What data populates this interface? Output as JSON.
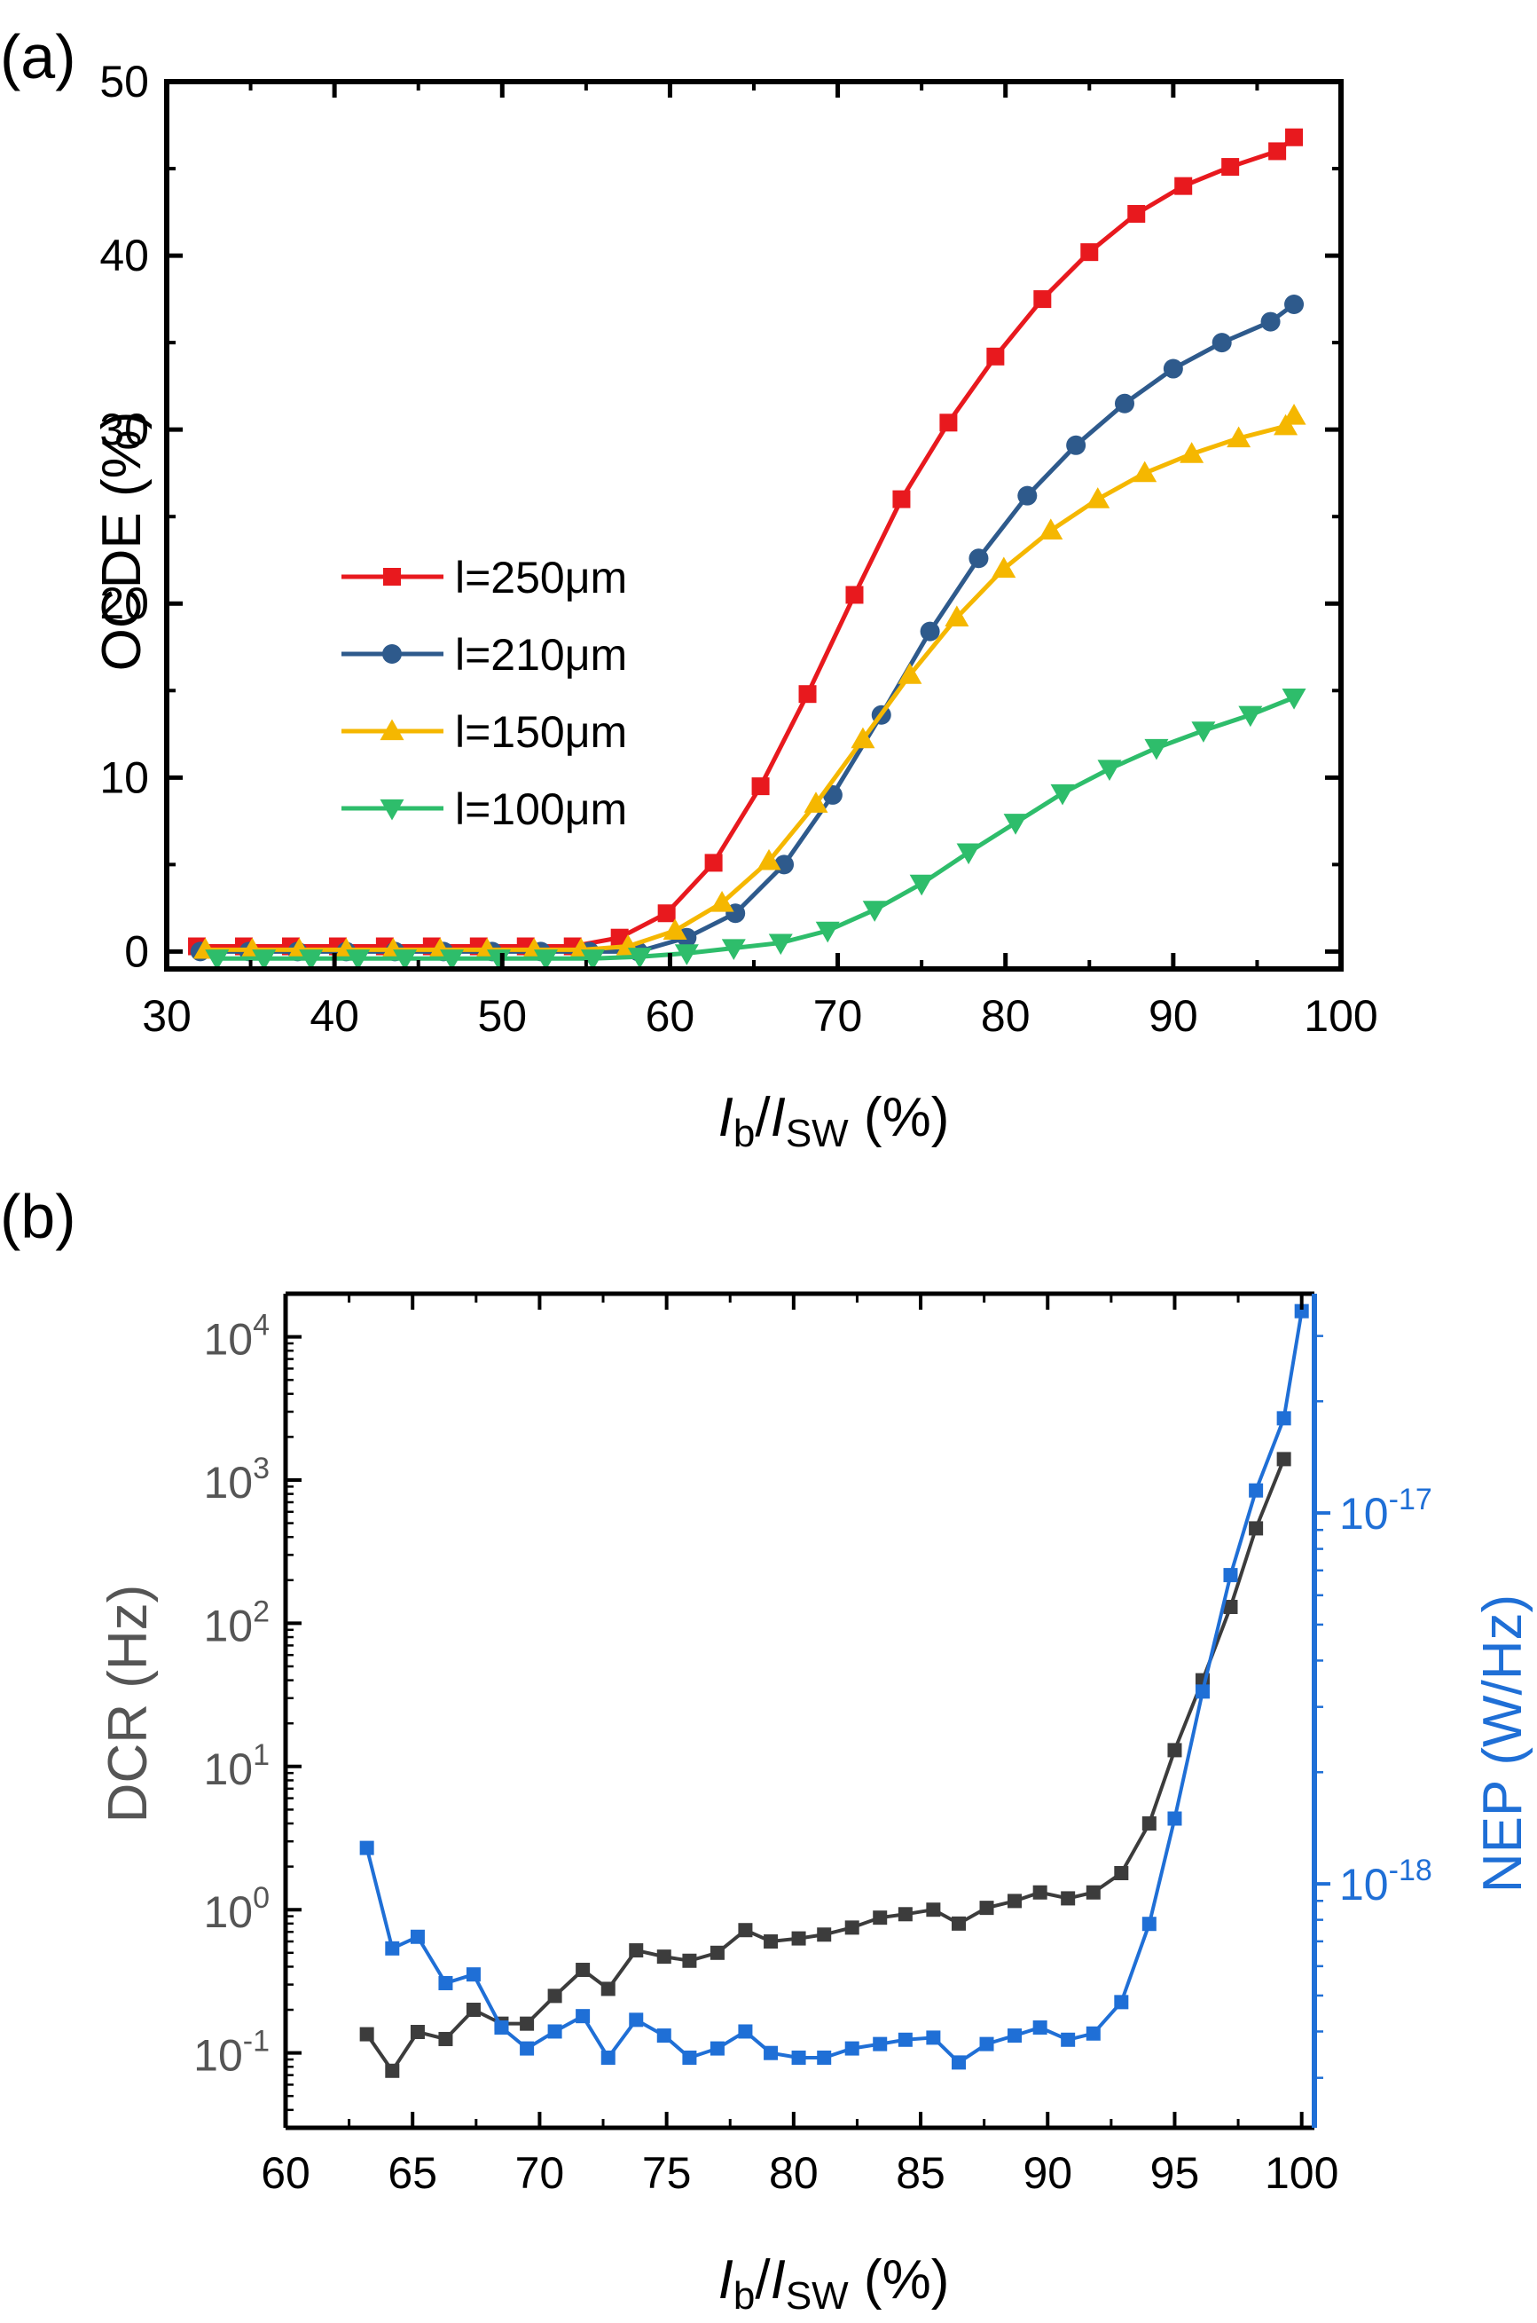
{
  "chart_data": [
    {
      "type": "line",
      "panel_label": "(a)",
      "xlabel": {
        "main": "I",
        "sub1": "b",
        "slash": "/",
        "main2": "I",
        "sub2": "SW",
        "unit": " (%)"
      },
      "ylabel": "OCDE (%)",
      "xlim": [
        30,
        100
      ],
      "ylim": [
        -1,
        50
      ],
      "xticks": [
        30,
        40,
        50,
        60,
        70,
        80,
        90,
        100
      ],
      "yticks": [
        0,
        10,
        20,
        30,
        40,
        50
      ],
      "legend_position": "center-left",
      "series": [
        {
          "name": "l=250μm",
          "color": "#e8191e",
          "marker": "square",
          "x": [
            31.8,
            34.6,
            37.4,
            40.2,
            43.0,
            45.8,
            48.6,
            51.4,
            54.2,
            57.0,
            59.8,
            62.6,
            65.4,
            68.2,
            71.0,
            73.8,
            76.6,
            79.4,
            82.2,
            85.0,
            87.8,
            90.6,
            93.4,
            96.2,
            97.2
          ],
          "y": [
            0.3,
            0.3,
            0.3,
            0.3,
            0.3,
            0.3,
            0.3,
            0.3,
            0.3,
            0.8,
            2.2,
            5.1,
            9.5,
            14.8,
            20.5,
            26.0,
            30.4,
            34.2,
            37.5,
            40.2,
            42.4,
            44.0,
            45.1,
            46.0,
            46.8
          ]
        },
        {
          "name": "l=210μm",
          "color": "#2e5a8c",
          "marker": "circle",
          "x": [
            32.0,
            34.9,
            37.8,
            40.7,
            43.6,
            46.5,
            49.4,
            52.3,
            55.2,
            58.1,
            61.0,
            63.9,
            66.8,
            69.7,
            72.6,
            75.5,
            78.4,
            81.3,
            84.2,
            87.1,
            90.0,
            92.9,
            95.8,
            97.2
          ],
          "y": [
            0,
            0,
            0,
            0,
            0,
            0,
            0,
            0,
            0,
            0,
            0.8,
            2.2,
            5.0,
            9.0,
            13.6,
            18.4,
            22.6,
            26.2,
            29.1,
            31.5,
            33.5,
            35.0,
            36.2,
            37.2
          ]
        },
        {
          "name": "l=150μm",
          "color": "#f5b700",
          "marker": "triangle-up",
          "x": [
            32.3,
            35.1,
            37.9,
            40.7,
            43.5,
            46.3,
            49.1,
            51.9,
            54.7,
            57.5,
            60.3,
            63.1,
            65.9,
            68.7,
            71.5,
            74.3,
            77.1,
            79.9,
            82.7,
            85.5,
            88.3,
            91.1,
            93.9,
            96.7,
            97.2
          ],
          "y": [
            0.1,
            0.1,
            0.1,
            0.1,
            0.1,
            0.1,
            0.1,
            0.1,
            0.1,
            0.3,
            1.2,
            2.8,
            5.2,
            8.5,
            12.2,
            15.9,
            19.2,
            22.0,
            24.2,
            26.0,
            27.5,
            28.6,
            29.5,
            30.2,
            30.8
          ]
        },
        {
          "name": "l=100μm",
          "color": "#2ebd6b",
          "marker": "triangle-down",
          "x": [
            33.0,
            35.8,
            38.6,
            41.4,
            44.2,
            47.0,
            49.8,
            52.6,
            55.4,
            58.2,
            61.0,
            63.8,
            66.6,
            69.4,
            72.2,
            75.0,
            77.8,
            80.6,
            83.4,
            86.2,
            89.0,
            91.8,
            94.6,
            97.2
          ],
          "y": [
            -0.4,
            -0.4,
            -0.4,
            -0.4,
            -0.4,
            -0.4,
            -0.4,
            -0.4,
            -0.4,
            -0.3,
            -0.1,
            0.2,
            0.5,
            1.2,
            2.4,
            3.9,
            5.7,
            7.4,
            9.1,
            10.5,
            11.7,
            12.7,
            13.6,
            14.6
          ]
        }
      ]
    },
    {
      "type": "line",
      "panel_label": "(b)",
      "xlabel": {
        "main": "I",
        "sub1": "b",
        "slash": "/",
        "main2": "I",
        "sub2": "SW",
        "unit": " (%)"
      },
      "ylabel_left": "DCR (Hz)",
      "ylabel_right": "NEP (W/Hz)",
      "xlim": [
        60,
        100.5
      ],
      "xticks": [
        60,
        65,
        70,
        75,
        80,
        85,
        90,
        95,
        100
      ],
      "y_left_scale": "log",
      "y_left_lim": [
        0.03,
        20000
      ],
      "y_left_ticks": [
        {
          "base": "10",
          "exp": "-1",
          "value": 0.1
        },
        {
          "base": "10",
          "exp": "0",
          "value": 1
        },
        {
          "base": "10",
          "exp": "1",
          "value": 10
        },
        {
          "base": "10",
          "exp": "2",
          "value": 100
        },
        {
          "base": "10",
          "exp": "3",
          "value": 1000
        },
        {
          "base": "10",
          "exp": "4",
          "value": 10000
        }
      ],
      "y_right_scale": "log",
      "y_right_lim": [
        2.2e-19,
        3.9e-17
      ],
      "y_right_ticks": [
        {
          "base": "10",
          "exp": "-18",
          "value": 1e-18
        },
        {
          "base": "10",
          "exp": "-17",
          "value": 1e-17
        }
      ],
      "y_right_color": "#1f6fd6",
      "series": [
        {
          "name": "DCR",
          "axis": "left",
          "color": "#3c3c3c",
          "marker": "square",
          "x": [
            63.2,
            64.2,
            65.2,
            66.3,
            67.4,
            68.5,
            69.5,
            70.6,
            71.7,
            72.7,
            73.8,
            74.9,
            75.9,
            77.0,
            78.1,
            79.1,
            80.2,
            81.2,
            82.3,
            83.4,
            84.4,
            85.5,
            86.5,
            87.6,
            88.7,
            89.7,
            90.8,
            91.8,
            92.9,
            94.0,
            95.0,
            96.1,
            97.2,
            98.2,
            99.3
          ],
          "y": [
            0.135,
            0.075,
            0.14,
            0.125,
            0.2,
            0.16,
            0.16,
            0.25,
            0.38,
            0.28,
            0.52,
            0.47,
            0.44,
            0.5,
            0.72,
            0.6,
            0.63,
            0.67,
            0.75,
            0.88,
            0.93,
            1.0,
            0.8,
            1.03,
            1.15,
            1.32,
            1.2,
            1.32,
            1.8,
            4.0,
            13,
            40,
            130,
            460,
            1400
          ]
        },
        {
          "name": "NEP",
          "axis": "right",
          "color": "#1f6fd6",
          "marker": "square",
          "x": [
            63.2,
            64.2,
            65.2,
            66.3,
            67.4,
            68.5,
            69.5,
            70.6,
            71.7,
            72.7,
            73.8,
            74.9,
            75.9,
            77.0,
            78.1,
            79.1,
            80.2,
            81.2,
            82.3,
            83.4,
            84.4,
            85.5,
            86.5,
            87.6,
            88.7,
            89.7,
            90.8,
            91.8,
            92.9,
            94.0,
            95.0,
            96.1,
            97.2,
            98.2,
            99.3,
            100.0
          ],
          "y": [
            1.25e-18,
            6.7e-19,
            7.2e-19,
            5.4e-19,
            5.7e-19,
            4.1e-19,
            3.6e-19,
            4e-19,
            4.4e-19,
            3.4e-19,
            4.3e-19,
            3.9e-19,
            3.4e-19,
            3.6e-19,
            4e-19,
            3.5e-19,
            3.4e-19,
            3.4e-19,
            3.6e-19,
            3.7e-19,
            3.8e-19,
            3.85e-19,
            3.3e-19,
            3.7e-19,
            3.9e-19,
            4.1e-19,
            3.8e-19,
            3.95e-19,
            4.8e-19,
            7.8e-19,
            1.5e-18,
            3.3e-18,
            6.8e-18,
            1.15e-17,
            1.8e-17,
            3.5e-17
          ]
        }
      ]
    }
  ]
}
